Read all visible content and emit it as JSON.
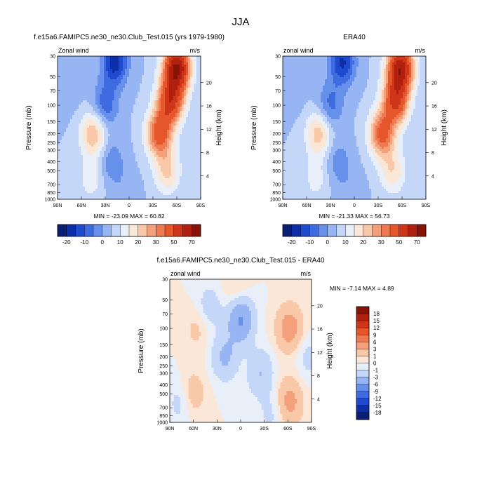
{
  "page_title": "JJA",
  "chart_data": [
    {
      "type": "heatmap",
      "title": "f.e15a6.FAMIPC5.ne30_ne30.Club_Test.015 (yrs 1979-1980)",
      "left_label": "Zonal wind",
      "units": "m/s",
      "ylabel": "Pressure (mb)",
      "ylabel_right": "Height (km)",
      "x_ticks": [
        "90N",
        "60N",
        "30N",
        "0",
        "30S",
        "60S",
        "90S"
      ],
      "x_tick_lat": [
        90,
        60,
        30,
        0,
        -30,
        -60,
        -90
      ],
      "y_ticks": [
        "30",
        "50",
        "70",
        "100",
        "150",
        "200",
        "250",
        "300",
        "400",
        "500",
        "700",
        "850",
        "1000"
      ],
      "y_tick_p": [
        30,
        50,
        70,
        100,
        150,
        200,
        250,
        300,
        400,
        500,
        700,
        850,
        1000
      ],
      "height_ticks": [
        "20",
        "16",
        "12",
        "8",
        "4"
      ],
      "height_km": [
        20,
        16,
        12,
        8,
        4
      ],
      "ylog": true,
      "stats": "MIN = -23.09  MAX =  60.82",
      "features": [
        {
          "lat": 18,
          "p": 35,
          "v": -23
        },
        {
          "lat": 30,
          "p": 100,
          "v": -14
        },
        {
          "lat": 22,
          "p": 400,
          "v": -9
        },
        {
          "lat": -60,
          "p": 40,
          "v": 60
        },
        {
          "lat": -52,
          "p": 90,
          "v": 43
        },
        {
          "lat": -38,
          "p": 200,
          "v": 35
        },
        {
          "lat": -48,
          "p": 500,
          "v": 16
        },
        {
          "lat": 45,
          "p": 200,
          "v": 20
        },
        {
          "lat": 48,
          "p": 600,
          "v": 8
        },
        {
          "lat": 75,
          "p": 80,
          "v": -2
        },
        {
          "lat": 5,
          "p": 900,
          "v": -4
        }
      ]
    },
    {
      "type": "heatmap",
      "title": "ERA40",
      "left_label": "zonal wind",
      "units": "m/s",
      "ylabel": "Pressure (mb)",
      "ylabel_right": "Height (km)",
      "x_ticks": [
        "90N",
        "60N",
        "30N",
        "0",
        "30S",
        "60S",
        "90S"
      ],
      "x_tick_lat": [
        90,
        60,
        30,
        0,
        -30,
        -60,
        -90
      ],
      "y_ticks": [
        "30",
        "50",
        "70",
        "100",
        "150",
        "200",
        "250",
        "300",
        "400",
        "500",
        "700",
        "850",
        "1000"
      ],
      "y_tick_p": [
        30,
        50,
        70,
        100,
        150,
        200,
        250,
        300,
        400,
        500,
        700,
        850,
        1000
      ],
      "height_ticks": [
        "20",
        "16",
        "12",
        "8",
        "4"
      ],
      "height_km": [
        20,
        16,
        12,
        8,
        4
      ],
      "ylog": true,
      "stats": "MIN = -21.33  MAX =  56.73",
      "features": [
        {
          "lat": 15,
          "p": 35,
          "v": -21
        },
        {
          "lat": 30,
          "p": 100,
          "v": -12
        },
        {
          "lat": 20,
          "p": 400,
          "v": -8
        },
        {
          "lat": -58,
          "p": 40,
          "v": 56
        },
        {
          "lat": -52,
          "p": 90,
          "v": 40
        },
        {
          "lat": -35,
          "p": 200,
          "v": 33
        },
        {
          "lat": -48,
          "p": 500,
          "v": 14
        },
        {
          "lat": 45,
          "p": 200,
          "v": 18
        },
        {
          "lat": 48,
          "p": 600,
          "v": 7
        },
        {
          "lat": 75,
          "p": 80,
          "v": -2
        },
        {
          "lat": 5,
          "p": 900,
          "v": -4
        }
      ]
    },
    {
      "type": "heatmap",
      "title": "f.e15a6.FAMIPC5.ne30_ne30.Club_Test.015 - ERA40",
      "left_label": "zonal wind",
      "units": "m/s",
      "ylabel": "Pressure (mb)",
      "ylabel_right": "Height (km)",
      "x_ticks": [
        "90N",
        "60N",
        "30N",
        "0",
        "30S",
        "60S",
        "90S"
      ],
      "x_tick_lat": [
        90,
        60,
        30,
        0,
        -30,
        -60,
        -90
      ],
      "y_ticks": [
        "30",
        "50",
        "70",
        "100",
        "150",
        "200",
        "250",
        "300",
        "400",
        "500",
        "700",
        "850",
        "1000"
      ],
      "y_tick_p": [
        30,
        50,
        70,
        100,
        150,
        200,
        250,
        300,
        400,
        500,
        700,
        850,
        1000
      ],
      "height_ticks": [
        "20",
        "16",
        "12",
        "8",
        "4"
      ],
      "height_km": [
        20,
        16,
        12,
        8,
        4
      ],
      "ylog": true,
      "stats": "MIN = -7.14  MAX =  4.89",
      "features": [
        {
          "lat": -62,
          "p": 100,
          "v": 4.5
        },
        {
          "lat": -62,
          "p": 600,
          "v": 4
        },
        {
          "lat": 62,
          "p": 500,
          "v": 2.5
        },
        {
          "lat": 55,
          "p": 100,
          "v": 1.5
        },
        {
          "lat": 5,
          "p": 40,
          "v": 1.5
        },
        {
          "lat": 20,
          "p": 200,
          "v": -3.5
        },
        {
          "lat": 0,
          "p": 80,
          "v": -6.5
        },
        {
          "lat": 40,
          "p": 60,
          "v": -2
        },
        {
          "lat": -25,
          "p": 300,
          "v": -3
        },
        {
          "lat": 75,
          "p": 600,
          "v": -2
        },
        {
          "lat": -40,
          "p": 800,
          "v": -1.5
        },
        {
          "lat": -85,
          "p": 200,
          "v": -1.5
        }
      ]
    }
  ],
  "colorbar_top": {
    "labels": [
      "-20",
      "-10",
      "0",
      "10",
      "20",
      "30",
      "50",
      "70"
    ],
    "levels": [
      -25,
      -20,
      -15,
      -10,
      -5,
      0,
      5,
      10,
      15,
      20,
      25,
      30,
      40,
      50,
      60,
      70
    ],
    "colors": [
      "#0a1e74",
      "#0c2fa7",
      "#1e4ad0",
      "#3f6be0",
      "#6690ea",
      "#97b5f2",
      "#c5d7f9",
      "#e8eff9",
      "#fbe7d8",
      "#f8c8a9",
      "#f4a07b",
      "#ee7a52",
      "#e6562b",
      "#cf3519",
      "#b0200f",
      "#871307"
    ]
  },
  "colorbar_diff": {
    "labels": [
      "18",
      "15",
      "12",
      "9",
      "6",
      "3",
      "1",
      "0",
      "-1",
      "-3",
      "-6",
      "-9",
      "-12",
      "-15",
      "-18"
    ],
    "levels": [
      -18,
      -15,
      -12,
      -9,
      -6,
      -3,
      -1,
      0,
      1,
      3,
      6,
      9,
      12,
      15,
      18
    ],
    "colors": [
      "#0a1e74",
      "#0c2fa7",
      "#1e4ad0",
      "#3f6be0",
      "#6690ea",
      "#97b5f2",
      "#c5d7f9",
      "#e8eff9",
      "#fbe7d8",
      "#f8c8a9",
      "#f4a07b",
      "#ee7a52",
      "#e6562b",
      "#cf3519",
      "#b0200f",
      "#871307"
    ]
  }
}
